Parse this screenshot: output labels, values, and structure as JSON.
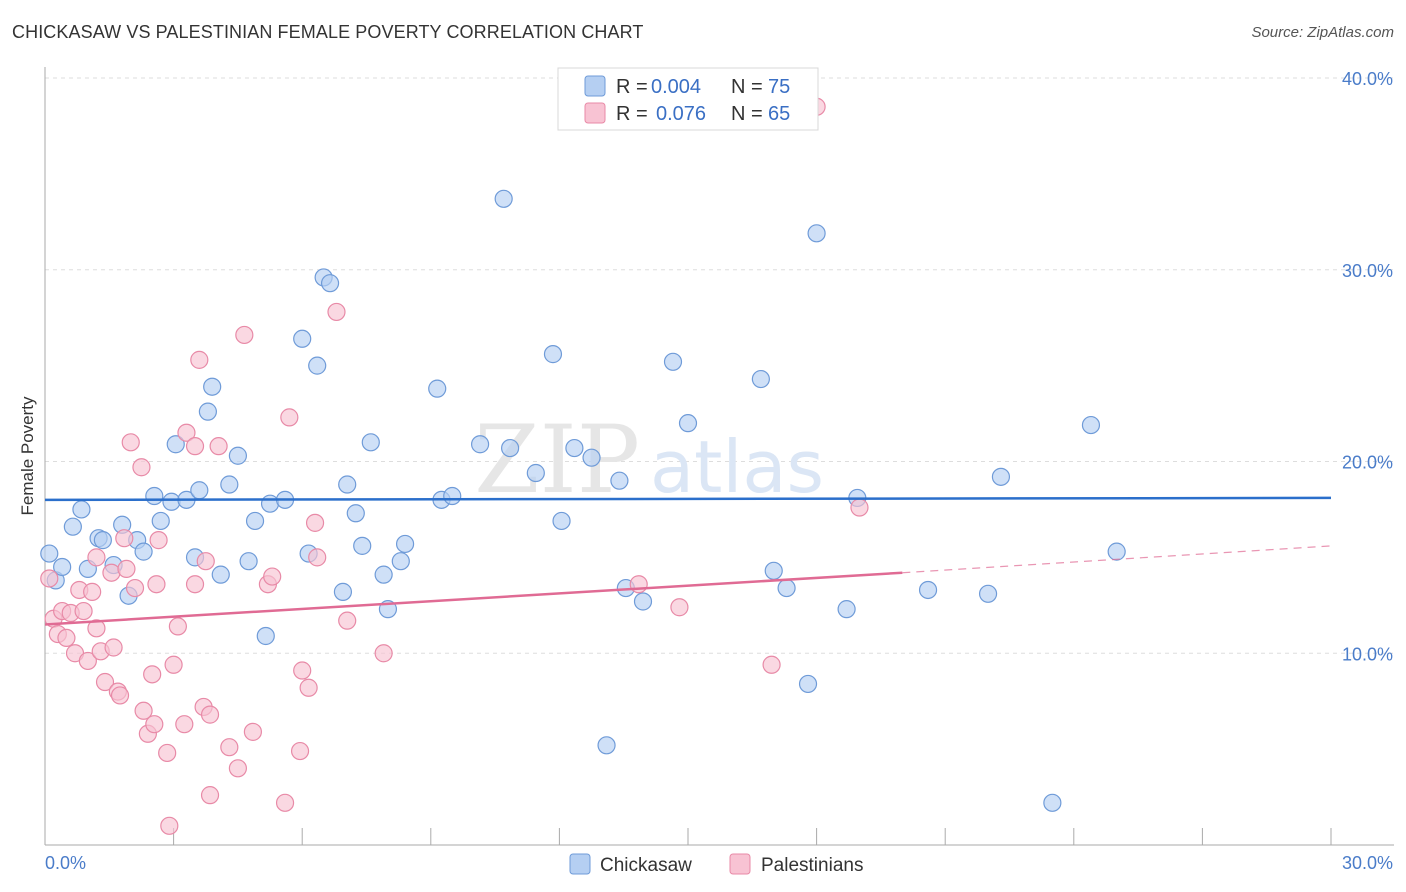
{
  "title": "CHICKASAW VS PALESTINIAN FEMALE POVERTY CORRELATION CHART",
  "source": "Source: ZipAtlas.com",
  "watermark": {
    "zip": "ZIP",
    "atlas": "atlas"
  },
  "colors": {
    "chickasaw_fill": "#b5cff2",
    "chickasaw_stroke": "#6f9bd8",
    "chickasaw_line": "#2b6fcb",
    "palestinian_fill": "#f8c3d3",
    "palestinian_stroke": "#e88aa7",
    "palestinian_line": "#e06b94",
    "tick_label": "#4a7cc9",
    "grid": "#dddddd"
  },
  "legend": {
    "rows": [
      {
        "r_label": "R =",
        "r_value": "0.004",
        "n_label": "N =",
        "n_value": "75"
      },
      {
        "r_label": "R =",
        "r_value": "0.076",
        "n_label": "N =",
        "n_value": "65"
      }
    ],
    "bottom": [
      "Chickasaw",
      "Palestinians"
    ]
  },
  "chart_data": {
    "type": "scatter",
    "xlabel": "",
    "ylabel": "Female Poverty",
    "xlim": [
      0,
      30
    ],
    "ylim": [
      0,
      40
    ],
    "x_tick_labels": [
      "0.0%",
      "30.0%"
    ],
    "y_ticks": [
      10,
      20,
      30,
      40
    ],
    "y_tick_labels": [
      "10.0%",
      "20.0%",
      "30.0%",
      "40.0%"
    ],
    "grid": true,
    "legend_position": "top-center",
    "series": [
      {
        "name": "Chickasaw",
        "trend": {
          "x": [
            0,
            30
          ],
          "y": [
            18.0,
            18.1
          ]
        },
        "points": [
          [
            0.1,
            15.2
          ],
          [
            0.25,
            13.8
          ],
          [
            0.4,
            14.5
          ],
          [
            0.65,
            16.6
          ],
          [
            0.85,
            17.5
          ],
          [
            1.0,
            14.4
          ],
          [
            1.25,
            16.0
          ],
          [
            1.35,
            15.9
          ],
          [
            1.6,
            14.6
          ],
          [
            1.8,
            16.7
          ],
          [
            1.95,
            13.0
          ],
          [
            2.15,
            15.9
          ],
          [
            2.3,
            15.3
          ],
          [
            2.55,
            18.2
          ],
          [
            2.7,
            16.9
          ],
          [
            2.95,
            17.9
          ],
          [
            3.05,
            20.9
          ],
          [
            3.3,
            18.0
          ],
          [
            3.5,
            15.0
          ],
          [
            3.6,
            18.5
          ],
          [
            3.8,
            22.6
          ],
          [
            3.9,
            23.9
          ],
          [
            4.1,
            14.1
          ],
          [
            4.3,
            18.8
          ],
          [
            4.5,
            20.3
          ],
          [
            4.75,
            14.8
          ],
          [
            4.9,
            16.9
          ],
          [
            5.15,
            10.9
          ],
          [
            5.25,
            17.8
          ],
          [
            5.6,
            18.0
          ],
          [
            6.0,
            26.4
          ],
          [
            6.15,
            15.2
          ],
          [
            6.35,
            25.0
          ],
          [
            6.5,
            29.6
          ],
          [
            6.65,
            29.3
          ],
          [
            6.95,
            13.2
          ],
          [
            7.05,
            18.8
          ],
          [
            7.25,
            17.3
          ],
          [
            7.4,
            15.6
          ],
          [
            7.6,
            21.0
          ],
          [
            7.9,
            14.1
          ],
          [
            8.0,
            12.3
          ],
          [
            8.3,
            14.8
          ],
          [
            8.4,
            15.7
          ],
          [
            9.15,
            23.8
          ],
          [
            9.25,
            18.0
          ],
          [
            9.5,
            18.2
          ],
          [
            10.15,
            20.9
          ],
          [
            10.7,
            33.7
          ],
          [
            10.85,
            20.7
          ],
          [
            11.45,
            19.4
          ],
          [
            11.85,
            25.6
          ],
          [
            12.05,
            16.9
          ],
          [
            12.35,
            20.7
          ],
          [
            12.75,
            20.2
          ],
          [
            13.1,
            5.2
          ],
          [
            13.4,
            19.0
          ],
          [
            13.55,
            13.4
          ],
          [
            13.95,
            12.7
          ],
          [
            14.65,
            25.2
          ],
          [
            15.0,
            22.0
          ],
          [
            15.25,
            38.5
          ],
          [
            16.7,
            24.3
          ],
          [
            17.0,
            14.3
          ],
          [
            17.3,
            13.4
          ],
          [
            17.8,
            8.4
          ],
          [
            18.0,
            31.9
          ],
          [
            18.7,
            12.3
          ],
          [
            18.95,
            18.1
          ],
          [
            20.6,
            13.3
          ],
          [
            22.0,
            13.1
          ],
          [
            22.3,
            19.2
          ],
          [
            23.5,
            2.2
          ],
          [
            24.4,
            21.9
          ],
          [
            25.0,
            15.3
          ]
        ]
      },
      {
        "name": "Palestinians",
        "trend": {
          "x": [
            0,
            20
          ],
          "y": [
            11.5,
            14.2
          ]
        },
        "trend_dashed": {
          "x": [
            20,
            30
          ],
          "y": [
            14.2,
            15.6
          ]
        },
        "points": [
          [
            0.1,
            13.9
          ],
          [
            0.2,
            11.8
          ],
          [
            0.3,
            11.0
          ],
          [
            0.4,
            12.2
          ],
          [
            0.5,
            10.8
          ],
          [
            0.6,
            12.1
          ],
          [
            0.7,
            10.0
          ],
          [
            0.8,
            13.3
          ],
          [
            0.9,
            12.2
          ],
          [
            1.0,
            9.6
          ],
          [
            1.1,
            13.2
          ],
          [
            1.2,
            11.3
          ],
          [
            1.3,
            10.1
          ],
          [
            1.4,
            8.5
          ],
          [
            1.55,
            14.2
          ],
          [
            1.6,
            10.3
          ],
          [
            1.7,
            8.0
          ],
          [
            1.75,
            7.8
          ],
          [
            1.85,
            16.0
          ],
          [
            1.9,
            14.4
          ],
          [
            2.0,
            21.0
          ],
          [
            2.1,
            13.4
          ],
          [
            2.25,
            19.7
          ],
          [
            2.3,
            7.0
          ],
          [
            2.4,
            5.8
          ],
          [
            2.5,
            8.9
          ],
          [
            2.55,
            6.3
          ],
          [
            2.6,
            13.6
          ],
          [
            2.65,
            15.9
          ],
          [
            2.85,
            4.8
          ],
          [
            2.9,
            1.0
          ],
          [
            3.0,
            9.4
          ],
          [
            3.1,
            11.4
          ],
          [
            3.25,
            6.3
          ],
          [
            3.3,
            21.5
          ],
          [
            3.5,
            13.6
          ],
          [
            3.5,
            20.8
          ],
          [
            3.6,
            25.3
          ],
          [
            3.7,
            7.2
          ],
          [
            3.75,
            14.8
          ],
          [
            3.85,
            6.8
          ],
          [
            3.85,
            2.6
          ],
          [
            4.05,
            20.8
          ],
          [
            4.3,
            5.1
          ],
          [
            4.5,
            4.0
          ],
          [
            4.65,
            26.6
          ],
          [
            4.85,
            5.9
          ],
          [
            5.2,
            13.6
          ],
          [
            5.3,
            14.0
          ],
          [
            5.6,
            2.2
          ],
          [
            5.7,
            22.3
          ],
          [
            5.95,
            4.9
          ],
          [
            6.0,
            9.1
          ],
          [
            6.15,
            8.2
          ],
          [
            6.3,
            16.8
          ],
          [
            6.35,
            15.0
          ],
          [
            6.8,
            27.8
          ],
          [
            7.05,
            11.7
          ],
          [
            7.9,
            10.0
          ],
          [
            13.85,
            13.6
          ],
          [
            14.8,
            12.4
          ],
          [
            16.95,
            9.4
          ],
          [
            18.0,
            38.5
          ],
          [
            19.0,
            17.6
          ],
          [
            1.2,
            15.0
          ]
        ]
      }
    ]
  }
}
